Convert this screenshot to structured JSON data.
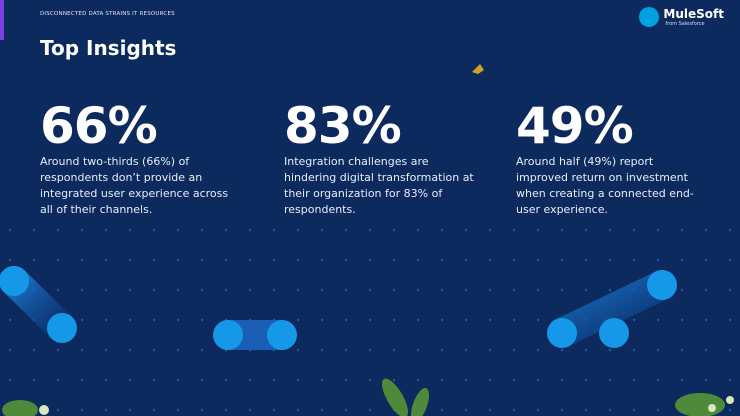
{
  "header": {
    "section_label": "DISCONNECTED DATA STRAINS IT RESOURCES",
    "logo": "MuleSoft",
    "logo_sub": "from Salesforce"
  },
  "title": "Top Insights",
  "insights": [
    {
      "stat": "66%",
      "text": "Around two-thirds (66%) of respondents don’t provide an integrated user experience across all of their channels."
    },
    {
      "stat": "83%",
      "text": "Integration challenges are hindering digital transformation at their organization for 83% of respondents."
    },
    {
      "stat": "49%",
      "text": "Around half (49%) report improved return on investment when creating a connected end-user experience."
    }
  ]
}
